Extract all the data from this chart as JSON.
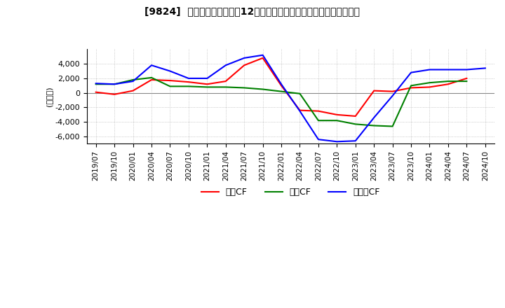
{
  "title": "[9824]  キャッシュフローの12か月移動合計の対前年同期増減額の推移",
  "ylabel": "(百万円)",
  "ylim": [
    -7000,
    6000
  ],
  "yticks": [
    -6000,
    -4000,
    -2000,
    0,
    2000,
    4000
  ],
  "legend_labels": [
    "営業CF",
    "投資CF",
    "フリーCF"
  ],
  "line_colors": [
    "#ff0000",
    "#008000",
    "#0000ff"
  ],
  "background_color": "#ffffff",
  "grid_color": "#aaaaaa",
  "x_labels": [
    "2019/07",
    "2019/10",
    "2020/01",
    "2020/04",
    "2020/07",
    "2020/10",
    "2021/01",
    "2021/04",
    "2021/07",
    "2021/10",
    "2022/01",
    "2022/04",
    "2022/07",
    "2022/10",
    "2023/01",
    "2023/04",
    "2023/07",
    "2023/10",
    "2024/01",
    "2024/04",
    "2024/07",
    "2024/10"
  ],
  "series": {
    "営業CF": [
      100,
      -200,
      300,
      1800,
      1700,
      1500,
      1200,
      1600,
      3800,
      4800,
      1000,
      -2400,
      -2500,
      -3000,
      -3200,
      300,
      200,
      700,
      800,
      1200,
      2000,
      null
    ],
    "投資CF": [
      1200,
      1200,
      1800,
      2100,
      900,
      900,
      800,
      800,
      700,
      500,
      200,
      -100,
      -3800,
      -3800,
      -4300,
      -4500,
      -4600,
      1000,
      1400,
      1600,
      1600,
      null
    ],
    "フリーCF": [
      1300,
      1200,
      1600,
      3800,
      3000,
      2000,
      2000,
      3800,
      4800,
      5200,
      1200,
      -2500,
      -6400,
      -6700,
      -6600,
      -3400,
      -400,
      2800,
      3200,
      3200,
      3200,
      3400
    ]
  }
}
